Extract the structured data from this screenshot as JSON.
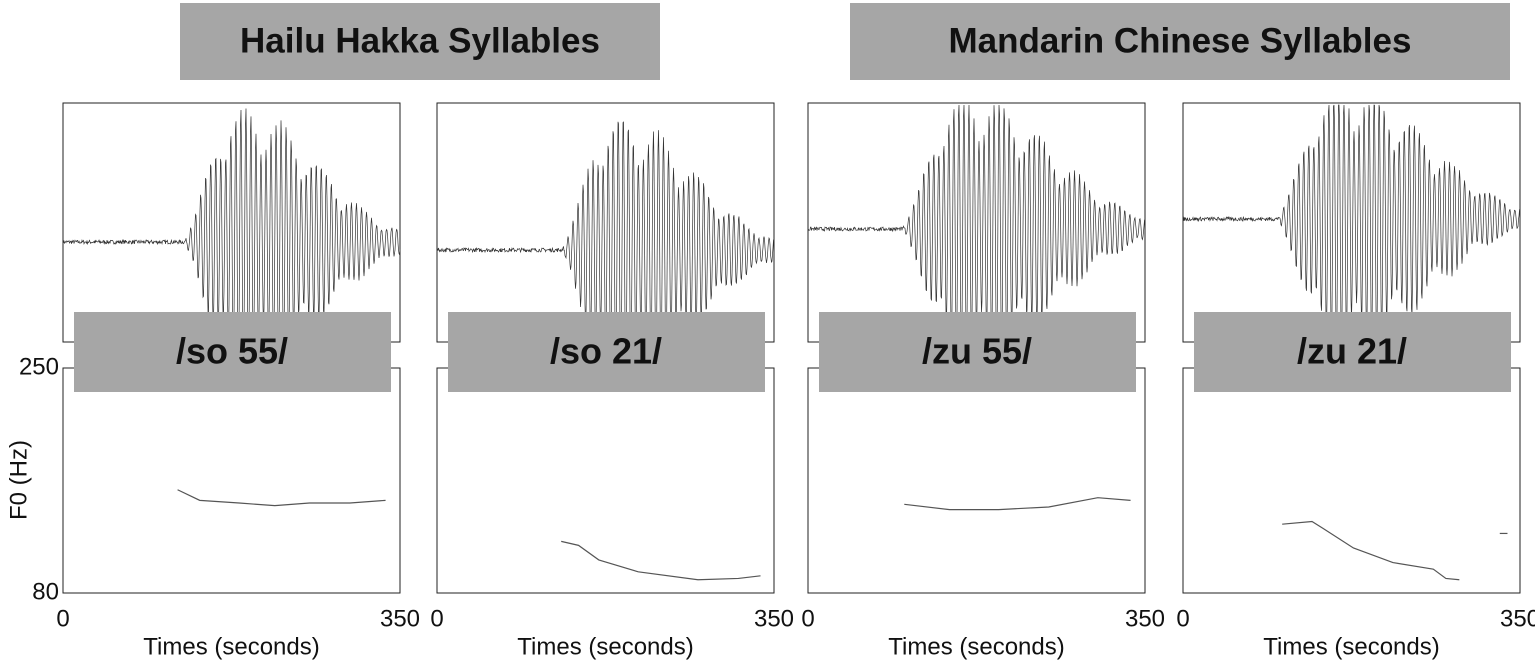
{
  "headings": [
    "Hailu Hakka Syllables",
    "Mandarin Chinese Syllables"
  ],
  "chart_data": [
    {
      "type": "line",
      "title": "/so 55/",
      "xlabel": "Times (seconds)",
      "ylabel": "F0 (Hz)",
      "xlim": [
        0,
        350
      ],
      "xticks": [
        0,
        350
      ],
      "ylim": [
        80,
        250
      ],
      "yticks": [
        250,
        80
      ],
      "color": "#555555",
      "x": [
        119,
        142,
        183,
        220,
        256,
        298,
        335
      ],
      "values": [
        158,
        150,
        148,
        146,
        148,
        148,
        150
      ]
    },
    {
      "type": "line",
      "title": "/so 21/",
      "xlabel": "Times (seconds)",
      "xlim": [
        0,
        350
      ],
      "xticks": [
        0,
        350
      ],
      "ylim": [
        80,
        250
      ],
      "color": "#555555",
      "x": [
        129,
        147,
        168,
        209,
        271,
        313,
        336
      ],
      "values": [
        119,
        116,
        105,
        96,
        90,
        91,
        93
      ]
    },
    {
      "type": "line",
      "title": "/zu 55/",
      "xlabel": "Times (seconds)",
      "xlim": [
        0,
        350
      ],
      "xticks": [
        0,
        350
      ],
      "ylim": [
        80,
        250
      ],
      "color": "#555555",
      "x": [
        100,
        147,
        198,
        250,
        301,
        335
      ],
      "values": [
        147,
        143,
        143,
        145,
        152,
        150
      ]
    },
    {
      "type": "line",
      "title": "/zu 21/",
      "xlabel": "Times (seconds)",
      "xlim": [
        0,
        350
      ],
      "xticks": [
        0,
        350
      ],
      "ylim": [
        80,
        250
      ],
      "color": "#555555",
      "x": [
        103,
        134,
        145,
        177,
        218,
        260,
        273,
        287,
        300,
        329,
        337
      ],
      "values": [
        132,
        134,
        129,
        114,
        103,
        98,
        91,
        90,
        null,
        125,
        125
      ]
    }
  ]
}
